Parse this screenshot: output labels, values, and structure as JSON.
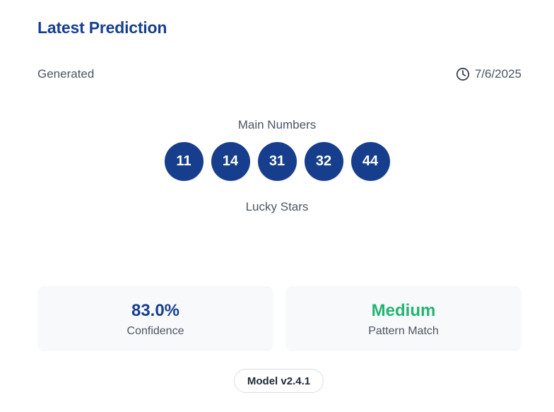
{
  "header": {
    "title": "Latest Prediction"
  },
  "generated": {
    "label": "Generated",
    "date": "7/6/2025",
    "icon": "clock-icon"
  },
  "main_numbers": {
    "label": "Main Numbers",
    "values": [
      "11",
      "14",
      "31",
      "32",
      "44"
    ]
  },
  "lucky_stars": {
    "label": "Lucky Stars",
    "values": []
  },
  "stats": {
    "confidence": {
      "value": "83.0%",
      "label": "Confidence"
    },
    "pattern_match": {
      "value": "Medium",
      "label": "Pattern Match"
    }
  },
  "model": {
    "label": "Model v2.4.1"
  },
  "colors": {
    "accent": "#183f8f",
    "ball": "#163e8c",
    "success": "#22b573"
  }
}
